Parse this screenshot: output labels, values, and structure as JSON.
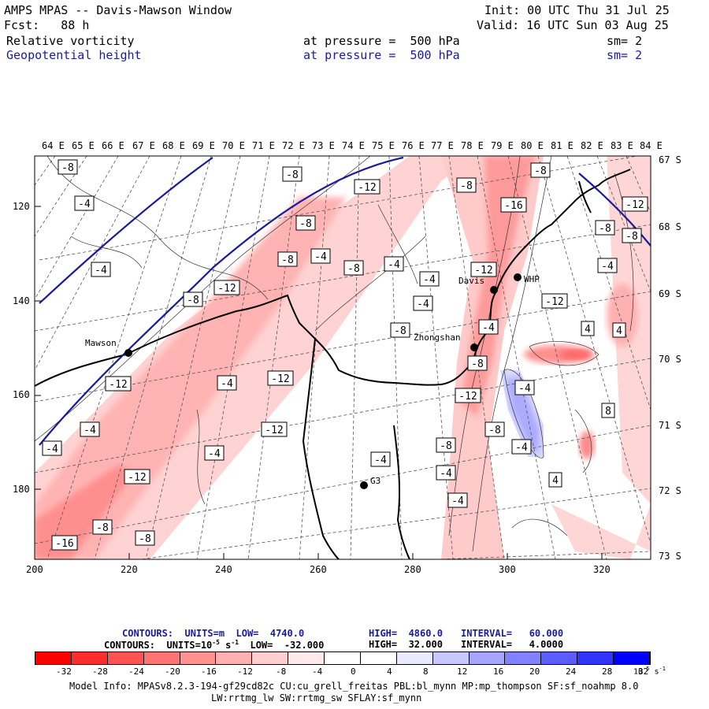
{
  "header": {
    "title": "AMPS MPAS -- Davis-Mawson Window",
    "fcst": "Fcst:   88 h",
    "init": "Init: 00 UTC Thu 31 Jul 25",
    "valid": "Valid: 16 UTC Sun 03 Aug 25",
    "field1": {
      "name": "Relative vorticity",
      "pressure": "at pressure =  500 hPa",
      "sm": "sm= 2"
    },
    "field2": {
      "name": "Geopotential height",
      "pressure": "at pressure =  500 hPa",
      "sm": "sm= 2"
    }
  },
  "map": {
    "top_ticks": [
      "64 E",
      "65 E",
      "66 E",
      "67 E",
      "68 E",
      "69 E",
      "70 E",
      "71 E",
      "72 E",
      "73 E",
      "74 E",
      "75 E",
      "76 E",
      "77 E",
      "78 E",
      "79 E",
      "80 E",
      "81 E",
      "82 E",
      "83 E",
      "84 E"
    ],
    "right_ticks": [
      "67 S",
      "68 S",
      "69 S",
      "70 S",
      "71 S",
      "72 S",
      "73 S"
    ],
    "left_ticks": [
      "120",
      "140",
      "160",
      "180"
    ],
    "bottom_ticks": [
      "200",
      "220",
      "240",
      "260",
      "280",
      "300",
      "320"
    ],
    "stations": [
      {
        "name": "Mawson"
      },
      {
        "name": "Davis"
      },
      {
        "name": "WHP"
      },
      {
        "name": "Zhongshan"
      },
      {
        "name": "G3"
      }
    ],
    "contour_labels": [
      "-8",
      "-4",
      "-4",
      "-8",
      "-8",
      "-12",
      "-8",
      "-8",
      "-12",
      "-8",
      "-8",
      "-8",
      "-4",
      "-8",
      "-4",
      "-16",
      "-12",
      "-4",
      "-4",
      "-12",
      "-4",
      "-8",
      "-4",
      "4",
      "-8",
      "-8",
      "-12",
      "4",
      "-12",
      "-4",
      "-12",
      "-4",
      "-12",
      "8",
      "-4",
      "-12",
      "-8",
      "-4",
      "-4",
      "-4",
      "-12",
      "-4",
      "-8",
      "4",
      "-4",
      "-4",
      "-16",
      "-8",
      "-8"
    ]
  },
  "footer": {
    "height_line": {
      "label": "CONTOURS:  UNITS=m  LOW=  4740.0",
      "high": "HIGH=  4860.0",
      "interval": "INTERVAL=   60.000"
    },
    "vort_line": {
      "label": "CONTOURS:  UNITS=10",
      "exp": "-5",
      "unit": " s",
      "unit_exp": "-1",
      "low": "  LOW=  -32.000",
      "high": "HIGH=  32.000",
      "interval": "INTERVAL=   4.0000"
    },
    "colorbar": {
      "ticks": [
        "-32",
        "-28",
        "-24",
        "-20",
        "-16",
        "-12",
        "-8",
        "-4",
        "0",
        "4",
        "8",
        "12",
        "16",
        "20",
        "24",
        "28",
        "32"
      ],
      "units": "10",
      "units_exp": "-5",
      "units_tail": "s",
      "units_tail_exp": "-1",
      "colors": [
        "#ff0000",
        "#ff2d2d",
        "#ff5252",
        "#ff7373",
        "#ff9191",
        "#ffb0b0",
        "#ffcfcf",
        "#ffe9e9",
        "#ffffff",
        "#ffffff",
        "#e9e9ff",
        "#c8c8ff",
        "#a6a6ff",
        "#8282ff",
        "#5c5cff",
        "#3333ff",
        "#0000ff"
      ]
    },
    "model_info_1": "Model Info: MPASv8.2.3-194-gf29cd82c CU:cu_grell_freitas PBL:bl_mynn MP:mp_thompson SF:sf_noahmp 8.0",
    "model_info_2": "LW:rrtmg_lw SW:rrtmg_sw SFLAY:sf_mynn"
  }
}
